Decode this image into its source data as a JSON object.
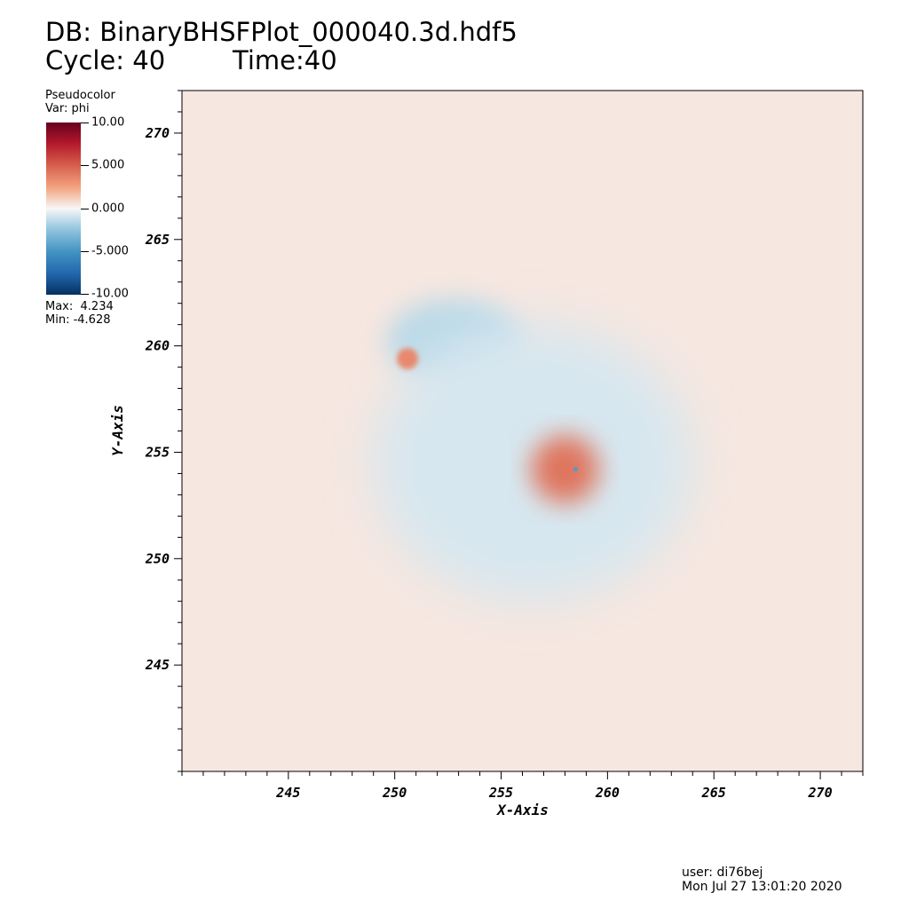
{
  "header": {
    "db_line": "DB: BinaryBHSFPlot_000040.3d.hdf5",
    "cycle_label": "Cycle: 40",
    "time_label": "Time:40"
  },
  "legend": {
    "title": "Pseudocolor",
    "var": "Var: phi",
    "ticks": [
      "10.00",
      "5.000",
      "0.000",
      "-5.000",
      "-10.00"
    ],
    "max": "Max:  4.234",
    "min": "Min: -4.628",
    "colormap": [
      "#67001f",
      "#b2182b",
      "#d6604d",
      "#f4a582",
      "#f7f7f7",
      "#92c5de",
      "#4393c3",
      "#2166ac",
      "#053061"
    ]
  },
  "chart_data": {
    "type": "heatmap",
    "title": "DB: BinaryBHSFPlot_000040.3d.hdf5",
    "variable": "phi",
    "xlabel": "X-Axis",
    "ylabel": "Y-Axis",
    "xlim": [
      240,
      272
    ],
    "ylim": [
      240,
      272
    ],
    "xticks": [
      245,
      250,
      255,
      260,
      265,
      270
    ],
    "yticks": [
      245,
      250,
      255,
      260,
      265,
      270
    ],
    "xtick_labels": [
      "245",
      "250",
      "255",
      "260",
      "265",
      "270"
    ],
    "ytick_labels": [
      "245",
      "250",
      "255",
      "260",
      "265",
      "270"
    ],
    "color_range": [
      -10,
      10
    ],
    "max": 4.234,
    "min": -4.628,
    "features": [
      {
        "kind": "background",
        "sign": "positive",
        "level": 0.5
      },
      {
        "kind": "blob",
        "sign": "negative",
        "x": 252.8,
        "y": 260.2,
        "rx": 3.2,
        "ry": 2.0,
        "level": -1.5
      },
      {
        "kind": "blob",
        "sign": "negative",
        "x": 256.5,
        "y": 254.5,
        "rx": 7.5,
        "ry": 6.5,
        "level": -0.8
      },
      {
        "kind": "blob",
        "sign": "positive",
        "x": 258.0,
        "y": 254.2,
        "rx": 1.6,
        "ry": 1.6,
        "level": 4.234
      },
      {
        "kind": "point",
        "sign": "negative",
        "x": 258.5,
        "y": 254.2,
        "level": -4.628
      },
      {
        "kind": "blob",
        "sign": "positive",
        "x": 250.6,
        "y": 259.4,
        "rx": 0.5,
        "ry": 0.5,
        "level": 3.5
      }
    ]
  },
  "footer": {
    "user": "user: di76bej",
    "date": "Mon Jul 27 13:01:20 2020"
  }
}
